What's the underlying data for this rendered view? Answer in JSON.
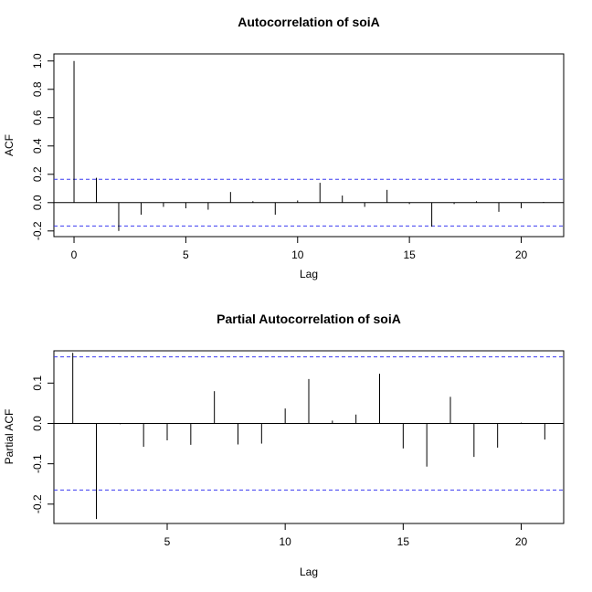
{
  "chart_data": [
    {
      "type": "bar",
      "title": "Autocorrelation of soiA",
      "xlabel": "Lag",
      "ylabel": "ACF",
      "xlim": [
        -0.9,
        21.9
      ],
      "ylim": [
        -0.24,
        1.05
      ],
      "xticks": [
        0,
        5,
        10,
        15,
        20
      ],
      "yticks": [
        -0.2,
        0.0,
        0.2,
        0.4,
        0.6,
        0.8,
        1.0
      ],
      "ytick_labels": [
        "-0.2",
        "0.0",
        "0.2",
        "0.4",
        "0.6",
        "0.8",
        "1.0"
      ],
      "confidence_bound": 0.165,
      "lags": [
        0,
        1,
        2,
        3,
        4,
        5,
        6,
        7,
        8,
        9,
        10,
        11,
        12,
        13,
        14,
        15,
        16,
        17,
        18,
        19,
        20,
        21
      ],
      "values": [
        1.0,
        0.175,
        -0.2,
        -0.085,
        -0.03,
        -0.04,
        -0.05,
        0.075,
        0.01,
        -0.085,
        0.015,
        0.14,
        0.05,
        -0.03,
        0.09,
        -0.01,
        -0.17,
        -0.01,
        0.01,
        -0.065,
        -0.04,
        0.005
      ]
    },
    {
      "type": "bar",
      "title": "Partial Autocorrelation of soiA",
      "xlabel": "Lag",
      "ylabel": "Partial ACF",
      "xlim": [
        0.2,
        21.8
      ],
      "ylim": [
        -0.248,
        0.18
      ],
      "xticks": [
        5,
        10,
        15,
        20
      ],
      "yticks": [
        -0.2,
        -0.1,
        0.0,
        0.1
      ],
      "ytick_labels": [
        "-0.2",
        "-0.1",
        "0.0",
        "0.1"
      ],
      "confidence_bound": 0.165,
      "lags": [
        1,
        2,
        3,
        4,
        5,
        6,
        7,
        8,
        9,
        10,
        11,
        12,
        13,
        14,
        15,
        16,
        17,
        18,
        19,
        20,
        21
      ],
      "values": [
        0.175,
        -0.237,
        -0.002,
        -0.058,
        -0.042,
        -0.053,
        0.08,
        -0.052,
        -0.05,
        0.037,
        0.11,
        0.007,
        0.022,
        0.123,
        -0.062,
        -0.107,
        0.066,
        -0.083,
        -0.06,
        0.002,
        -0.04
      ]
    }
  ]
}
